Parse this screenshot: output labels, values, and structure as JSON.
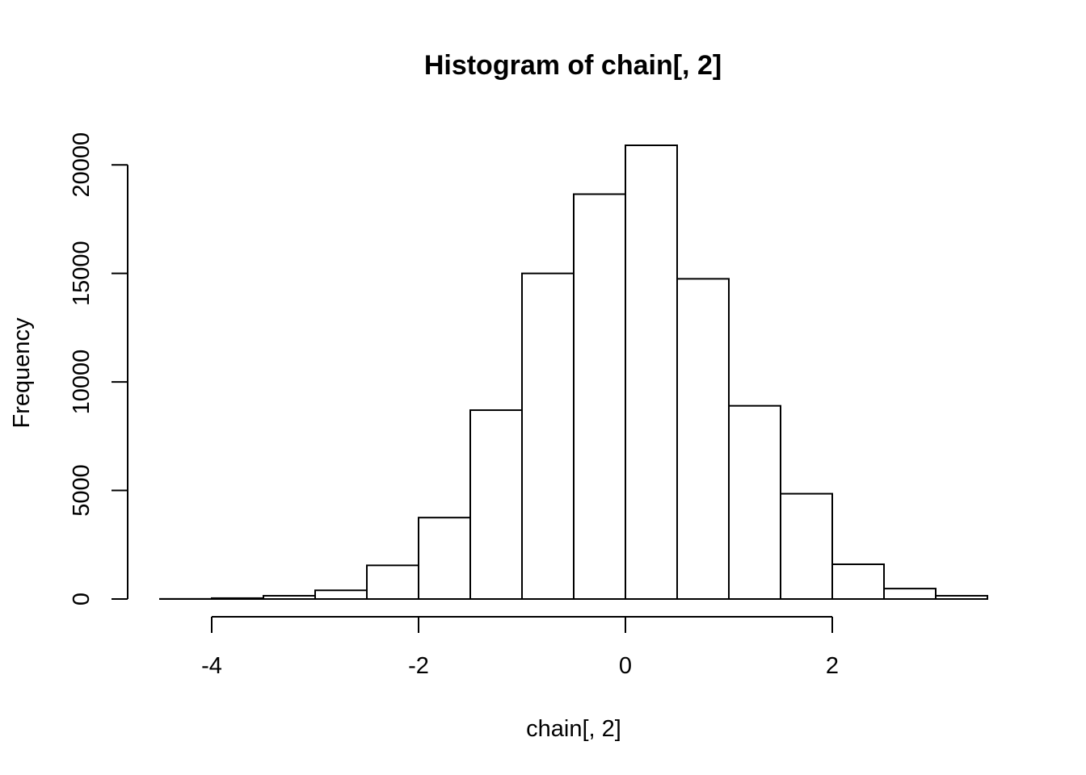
{
  "chart_data": {
    "type": "bar",
    "title": "Histogram of chain[, 2]",
    "xlabel": "chain[, 2]",
    "ylabel": "Frequency",
    "bin_edges": [
      -4.5,
      -4.0,
      -3.5,
      -3.0,
      -2.5,
      -2.0,
      -1.5,
      -1.0,
      -0.5,
      0.0,
      0.5,
      1.0,
      1.5,
      2.0,
      2.5,
      3.0,
      3.5
    ],
    "values": [
      5,
      40,
      150,
      400,
      1550,
      3750,
      8700,
      15000,
      18650,
      20900,
      14750,
      8900,
      4850,
      1600,
      480,
      150
    ],
    "xlim": [
      -4.5,
      3.5
    ],
    "ylim": [
      0,
      20900
    ],
    "x_ticks": [
      -4,
      -2,
      0,
      2
    ],
    "x_tick_labels": [
      "-4",
      "-2",
      "0",
      "2"
    ],
    "y_ticks": [
      0,
      5000,
      10000,
      15000,
      20000
    ],
    "y_tick_labels": [
      "0",
      "5000",
      "10000",
      "15000",
      "20000"
    ],
    "grid": false,
    "bar_fill": "#ffffff",
    "bar_stroke": "#000000"
  }
}
